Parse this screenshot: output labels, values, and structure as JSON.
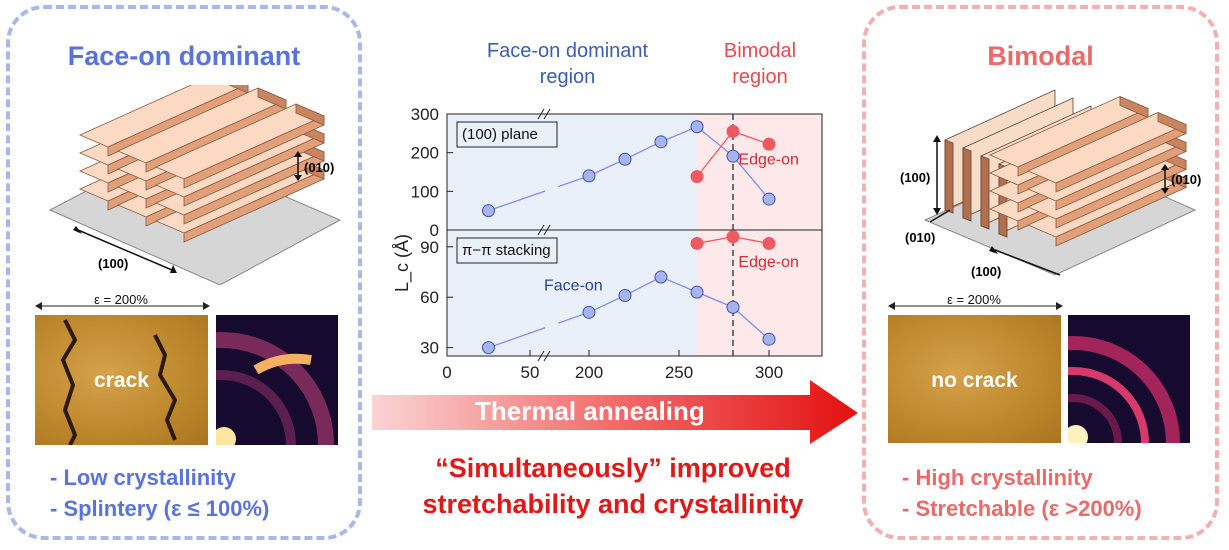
{
  "left": {
    "title": "Face-on dominant",
    "label_010": "(010)",
    "label_100": "(100)",
    "strain": "ε = 200%",
    "micro_label": "crack",
    "bullets": [
      "- Low crystallinity",
      "- Splintery (ε ≤ 100%)"
    ]
  },
  "right": {
    "title": "Bimodal",
    "label_010_right": "(010)",
    "label_100_left": "(100)",
    "label_010_bottom": "(010)",
    "label_100_bottom": "(100)",
    "strain": "ε = 200%",
    "micro_label": "no crack",
    "bullets": [
      "- High crystallinity",
      "- Stretchable (ε >200%)"
    ]
  },
  "center": {
    "region_left": [
      "Face-on dominant",
      "region"
    ],
    "region_right": [
      "Bimodal",
      "region"
    ],
    "arrow_label": "Thermal annealing",
    "conclusion": [
      "“Simultaneously” improved",
      "stretchability and crystallinity"
    ]
  },
  "colors": {
    "face_on": "#7f8fe8",
    "edge_on": "#ee5a62",
    "left_region": "#eaf0fa",
    "right_region": "#fde8ea"
  },
  "chart_data": [
    {
      "type": "line",
      "panel_label": "(100) plane",
      "ylabel": "L_c (Å)",
      "xlabel": "",
      "xlim": [
        0,
        330
      ],
      "ylim": [
        0,
        300
      ],
      "yticks": [
        0,
        100,
        200,
        300
      ],
      "x_break_at": 50,
      "series": [
        {
          "name": "Face-on",
          "x": [
            25,
            200,
            220,
            240,
            260,
            280,
            300
          ],
          "values": [
            50,
            140,
            183,
            228,
            267,
            191,
            80
          ]
        },
        {
          "name": "Edge-on",
          "x": [
            260,
            280,
            300
          ],
          "values": [
            138,
            255,
            222
          ]
        }
      ],
      "vline_x": 280
    },
    {
      "type": "line",
      "panel_label": "π−π stacking",
      "ylabel": "L_c (Å)",
      "xlabel": "",
      "xlim": [
        0,
        330
      ],
      "ylim": [
        25,
        100
      ],
      "yticks": [
        30,
        60,
        90
      ],
      "xticks": [
        0,
        50,
        200,
        250,
        300
      ],
      "x_break_at": 50,
      "series": [
        {
          "name": "Face-on",
          "x": [
            25,
            200,
            220,
            240,
            260,
            280,
            300
          ],
          "values": [
            30,
            51,
            61,
            72,
            63,
            54,
            35
          ]
        },
        {
          "name": "Edge-on",
          "x": [
            260,
            280,
            300
          ],
          "values": [
            92,
            96,
            92
          ]
        }
      ],
      "vline_x": 280
    }
  ]
}
